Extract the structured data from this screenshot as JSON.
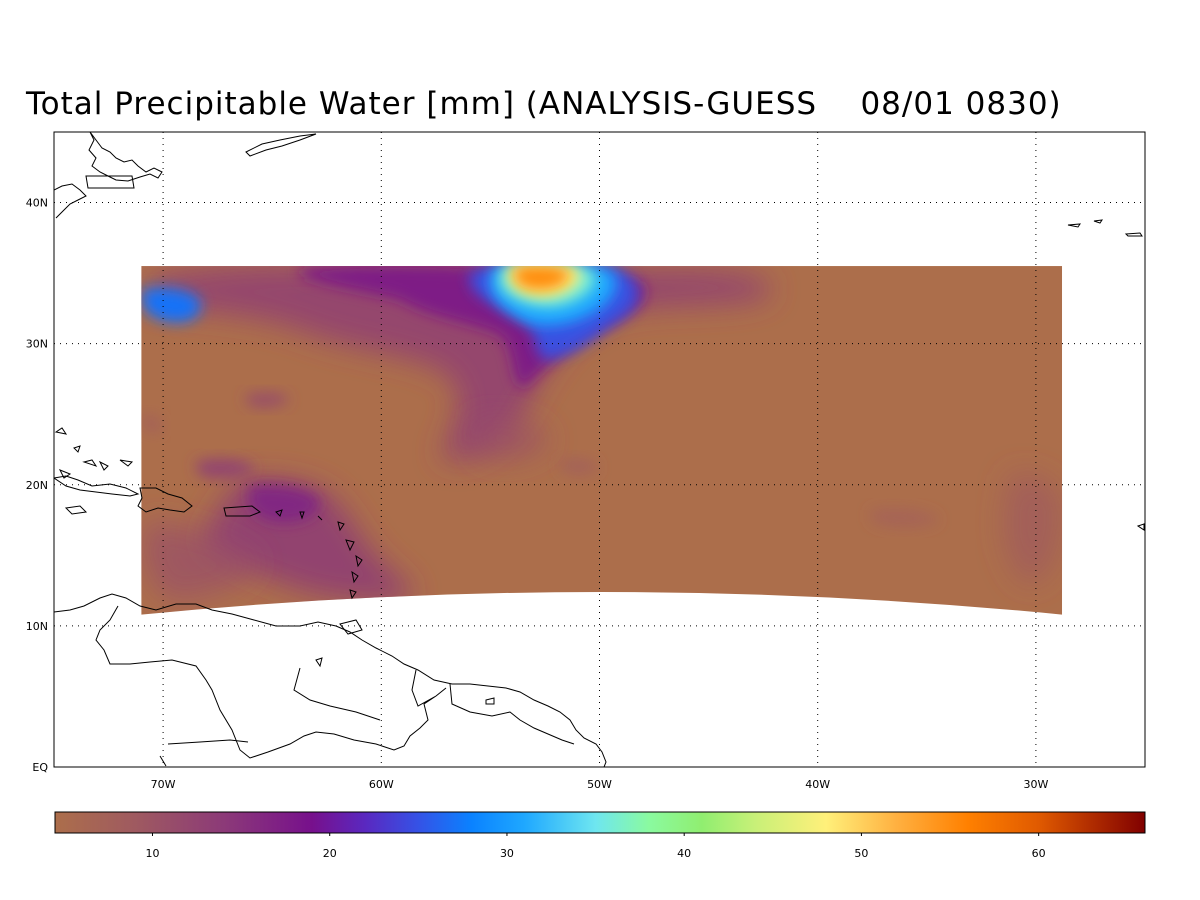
{
  "title": "Total Precipitable Water [mm] (ANALYSIS-GUESS    08/01 0830)",
  "map": {
    "lon_range": [
      -75,
      -25
    ],
    "lat_range": [
      0,
      45
    ],
    "lon_ticks": [
      {
        "value": -70,
        "label": "70W"
      },
      {
        "value": -60,
        "label": "60W"
      },
      {
        "value": -50,
        "label": "50W"
      },
      {
        "value": -40,
        "label": "40W"
      },
      {
        "value": -30,
        "label": "30W"
      }
    ],
    "lat_ticks": [
      {
        "value": 0,
        "label": "EQ"
      },
      {
        "value": 10,
        "label": "10N"
      },
      {
        "value": 20,
        "label": "20N"
      },
      {
        "value": 30,
        "label": "30N"
      },
      {
        "value": 40,
        "label": "40N"
      }
    ],
    "grid": "dotted",
    "field_background_color": "#ac6e4b",
    "data_region": {
      "lon_min": -71,
      "lon_max": -28.8,
      "lat_max": 35.5,
      "lat_min_center": 12.4,
      "lat_min_edges": 10.8
    },
    "features": [
      {
        "name": "tpw-max-north-central",
        "lon": -53,
        "lat": 34.5,
        "value": 55
      },
      {
        "name": "tpw-band-north-central",
        "lon": -52,
        "lat": 31,
        "value": 30
      },
      {
        "name": "tpw-band-west-edge",
        "lon": -70,
        "lat": 33,
        "value": 28
      },
      {
        "name": "tpw-patch-caribbean",
        "lon": -65,
        "lat": 19,
        "value": 15
      },
      {
        "name": "tpw-patch-east",
        "lon": -31,
        "lat": 17,
        "value": 10
      }
    ]
  },
  "colorbar": {
    "range": [
      4.5,
      66
    ],
    "ticks": [
      10,
      20,
      30,
      40,
      50,
      60
    ],
    "stops": [
      {
        "value": 4.5,
        "color": "#ac6e4b"
      },
      {
        "value": 9,
        "color": "#9f5a60"
      },
      {
        "value": 14,
        "color": "#8c3a78"
      },
      {
        "value": 19,
        "color": "#77108c"
      },
      {
        "value": 22,
        "color": "#5a28c0"
      },
      {
        "value": 25,
        "color": "#3552e6"
      },
      {
        "value": 28,
        "color": "#0a82ff"
      },
      {
        "value": 31,
        "color": "#1fa8ff"
      },
      {
        "value": 35,
        "color": "#6ee6f0"
      },
      {
        "value": 38,
        "color": "#8afaa0"
      },
      {
        "value": 41,
        "color": "#90ee70"
      },
      {
        "value": 44,
        "color": "#c8f078"
      },
      {
        "value": 48,
        "color": "#fff07a"
      },
      {
        "value": 52,
        "color": "#ffb040"
      },
      {
        "value": 56,
        "color": "#ff8000"
      },
      {
        "value": 60,
        "color": "#e05a00"
      },
      {
        "value": 63,
        "color": "#b02c00"
      },
      {
        "value": 66,
        "color": "#800000"
      }
    ]
  }
}
